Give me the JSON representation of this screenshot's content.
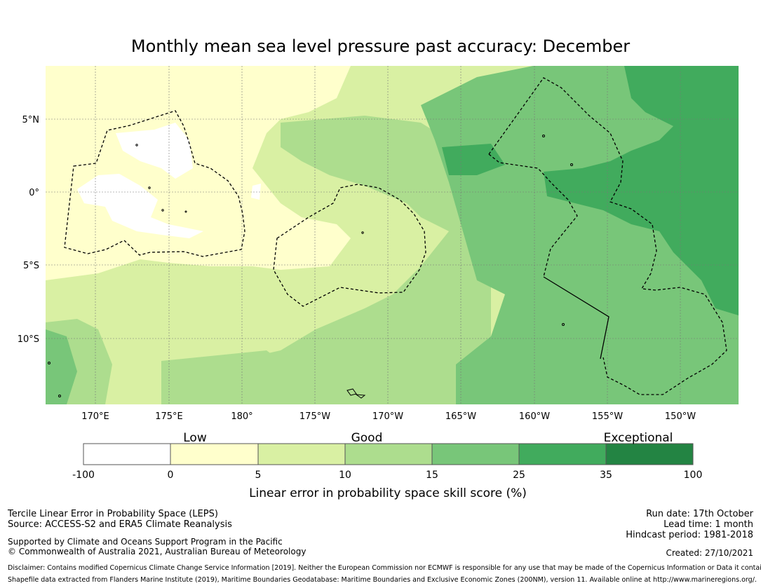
{
  "title": "Monthly mean sea level pressure past accuracy: December",
  "map": {
    "lon_labels": [
      "170°E",
      "175°E",
      "180°",
      "175°W",
      "170°W",
      "165°W",
      "160°W",
      "155°W",
      "150°W"
    ],
    "lat_labels": [
      "5°N",
      "0°",
      "5°S",
      "10°S"
    ]
  },
  "colorbar": {
    "categories": [
      {
        "name": "Low",
        "color": "#ffffff"
      },
      {
        "name": "",
        "color": "#ffffcc"
      },
      {
        "name": "Good",
        "color": "#d9f0a3"
      },
      {
        "name": "",
        "color": "#addd8e"
      },
      {
        "name": "",
        "color": "#78c679"
      },
      {
        "name": "Exceptional",
        "color": "#41ab5d"
      },
      {
        "name": "",
        "color": "#238443"
      }
    ],
    "category_labels": [
      "Low",
      "Good",
      "Exceptional"
    ],
    "ticks": [
      "-100",
      "0",
      "5",
      "10",
      "15",
      "25",
      "35",
      "100"
    ],
    "label": "Linear error in probability space skill score (%)"
  },
  "footer": {
    "line1": "Tercile Linear Error in Probability Space (LEPS)",
    "line2": "Source: ACCESS-S2 and ERA5 Climate Reanalysis",
    "line3": "Supported by Climate and Oceans Support Program in the Pacific",
    "line4": "© Commonwealth of Australia 2021, Australian Bureau of Meteorology",
    "run_date": "Run date: 17th October",
    "lead_time": "Lead time: 1 month",
    "hindcast": "Hindcast period: 1981-2018",
    "created": "Created: 27/10/2021",
    "disclaimer": "Disclaimer: Contains modified Copernicus Climate Change Service Information [2019]. Neither the European Commission nor ECMWF is responsible for any use that may be made of the Copernicus Information or Data it contains.",
    "shapefile": "Shapefile data extracted from Flanders Marine Institute (2019), Maritime Boundaries Geodatabase: Maritime Boundaries and Exclusive Economic Zones (200NM), version 11. Available online at http://www.marineregions.org/."
  }
}
